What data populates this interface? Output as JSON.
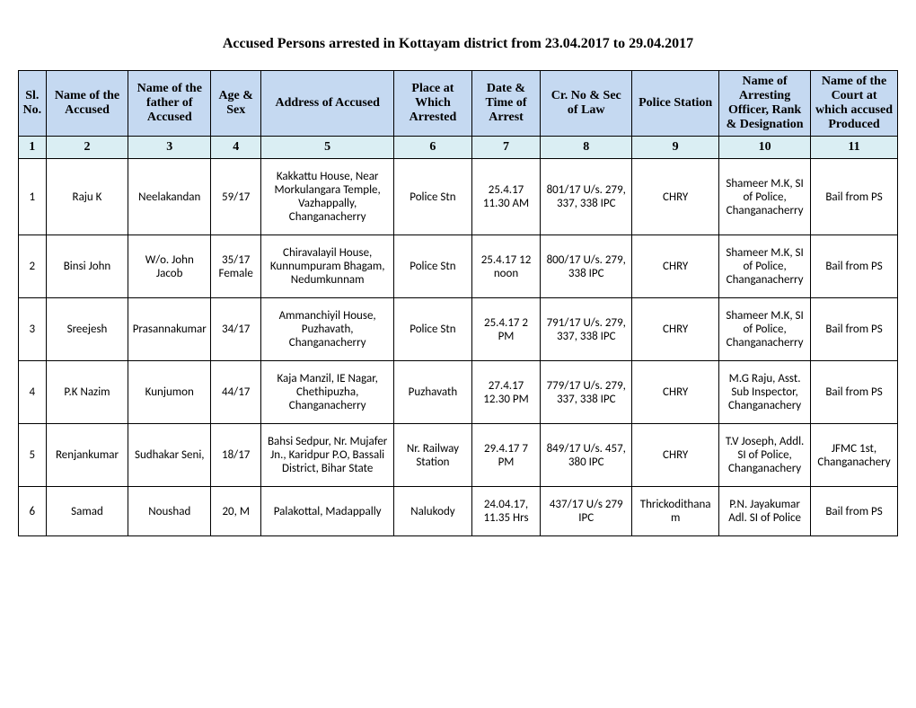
{
  "title": "Accused Persons arrested in   Kottayam  district from  23.04.2017 to 29.04.2017",
  "headers": {
    "c1": "Sl. No.",
    "c2": "Name of the Accused",
    "c3": "Name of the father of Accused",
    "c4": "Age & Sex",
    "c5": "Address of Accused",
    "c6": "Place at Which Arrested",
    "c7": "Date & Time of Arrest",
    "c8": "Cr. No & Sec of Law",
    "c9": "Police Station",
    "c10": "Name of Arresting Officer, Rank & Designation",
    "c11": "Name of the Court at which accused Produced"
  },
  "colnums": {
    "c1": "1",
    "c2": "2",
    "c3": "3",
    "c4": "4",
    "c5": "5",
    "c6": "6",
    "c7": "7",
    "c8": "8",
    "c9": "9",
    "c10": "10",
    "c11": "11"
  },
  "rows": [
    {
      "c1": "1",
      "c2": "Raju K",
      "c3": "Neelakandan",
      "c4": "59/17",
      "c5": "Kakkattu House, Near Morkulangara Temple, Vazhappally, Changanacherry",
      "c6": "Police Stn",
      "c7": "25.4.17 11.30 AM",
      "c8": "801/17 U/s. 279, 337, 338 IPC",
      "c9": "CHRY",
      "c10": "Shameer M.K, SI of Police, Changanacherry",
      "c11": "Bail from PS"
    },
    {
      "c1": "2",
      "c2": "Binsi John",
      "c3": "W/o. John Jacob",
      "c4": "35/17 Female",
      "c5": "Chiravalayil House, Kunnumpuram Bhagam, Nedumkunnam",
      "c6": "Police Stn",
      "c7": "25.4.17 12 noon",
      "c8": "800/17 U/s. 279, 338 IPC",
      "c9": "CHRY",
      "c10": "Shameer M.K, SI of Police, Changanacherry",
      "c11": "Bail from PS"
    },
    {
      "c1": "3",
      "c2": "Sreejesh",
      "c3": "Prasannakumar",
      "c4": "34/17",
      "c5": "Ammanchiyil House, Puzhavath, Changanacherry",
      "c6": "Police Stn",
      "c7": "25.4.17 2 PM",
      "c8": "791/17 U/s. 279, 337, 338 IPC",
      "c9": "CHRY",
      "c10": "Shameer M.K, SI of Police, Changanacherry",
      "c11": "Bail from PS"
    },
    {
      "c1": "4",
      "c2": "P.K Nazim",
      "c3": "Kunjumon",
      "c4": "44/17",
      "c5": "Kaja Manzil, IE Nagar, Chethipuzha, Changanacherry",
      "c6": "Puzhavath",
      "c7": "27.4.17 12.30 PM",
      "c8": "779/17 U/s. 279, 337, 338 IPC",
      "c9": "CHRY",
      "c10": "M.G Raju, Asst. Sub Inspector, Changanachery",
      "c11": "Bail from PS"
    },
    {
      "c1": "5",
      "c2": "Renjankumar",
      "c3": "Sudhakar Seni,",
      "c4": "18/17",
      "c5": "Bahsi Sedpur, Nr. Mujafer Jn., Karidpur P.O, Bassali District, Bihar State",
      "c6": "Nr. Railway Station",
      "c7": "29.4.17 7 PM",
      "c8": "849/17 U/s. 457, 380 IPC",
      "c9": "CHRY",
      "c10": "T.V Joseph, Addl.  SI of Police, Changanachery",
      "c11": "JFMC 1st, Changanachery"
    },
    {
      "c1": "6",
      "c2": "Samad",
      "c3": "Noushad",
      "c4": "20, M",
      "c5": "Palakottal, Madappally",
      "c6": "Nalukody",
      "c7": "24.04.17, 11.35 Hrs",
      "c8": "437/17 U/s 279 IPC",
      "c9": "Thrickodithanam",
      "c10": "P.N. Jayakumar Adl. SI of Police",
      "c11": "Bail from PS"
    }
  ],
  "colors": {
    "header_bg": "#c5d9f1",
    "number_bg": "#daeef3",
    "border": "#000000",
    "page_bg": "#ffffff"
  }
}
